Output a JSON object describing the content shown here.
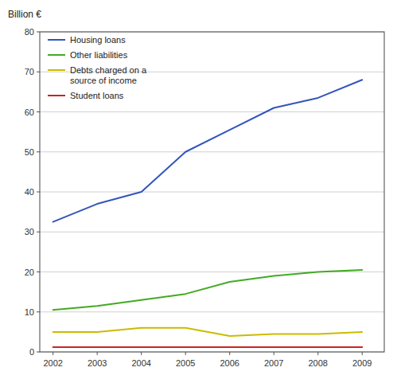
{
  "chart_data": {
    "type": "line",
    "y_label": "Billion €",
    "x": [
      2002,
      2003,
      2004,
      2005,
      2006,
      2007,
      2008,
      2009
    ],
    "series": [
      {
        "name": "Housing loans",
        "color": "#3355bb",
        "values": [
          32.5,
          37.0,
          40.0,
          50.0,
          55.5,
          61.0,
          63.5,
          68.0
        ]
      },
      {
        "name": "Other liabilities",
        "color": "#44aa22",
        "values": [
          10.5,
          11.5,
          13.0,
          14.5,
          17.5,
          19.0,
          20.0,
          20.5
        ]
      },
      {
        "name": "Debts charged on a\nsource of income",
        "color": "#ccbb00",
        "values": [
          5.0,
          5.0,
          6.0,
          6.0,
          4.0,
          4.5,
          4.5,
          5.0
        ]
      },
      {
        "name": "Student loans",
        "color": "#cc2222",
        "values": [
          1.2,
          1.2,
          1.2,
          1.2,
          1.2,
          1.2,
          1.2,
          1.2
        ]
      }
    ],
    "xlim": [
      2001.7,
      2009.5
    ],
    "xticks": [
      2002,
      2003,
      2004,
      2005,
      2006,
      2007,
      2008,
      2009
    ],
    "ylim": [
      0,
      80
    ],
    "yticks": [
      0,
      10,
      20,
      30,
      40,
      50,
      60,
      70,
      80
    ],
    "grid": true,
    "legend": "upper left"
  }
}
